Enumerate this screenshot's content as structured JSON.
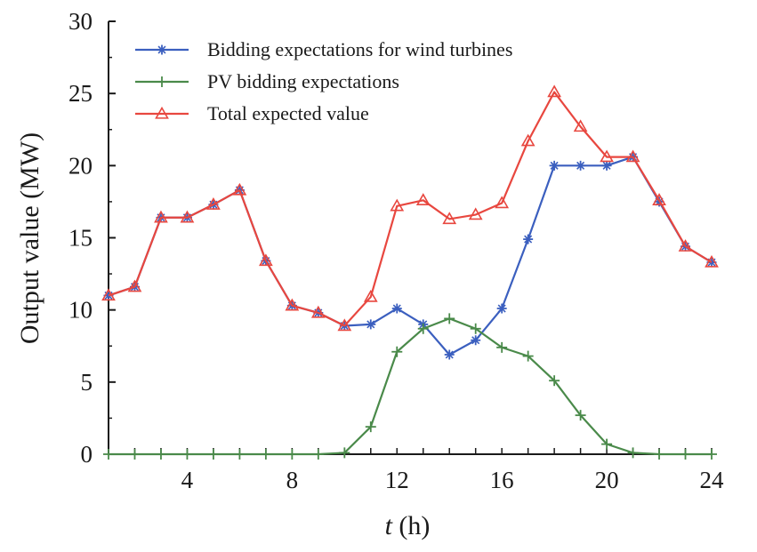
{
  "chart_data": {
    "type": "line",
    "title": "",
    "xlabel_var": "t",
    "xlabel_unit": " (h)",
    "ylabel": "Output value  (MW)",
    "xlim": [
      1,
      24
    ],
    "ylim": [
      0,
      30
    ],
    "x_ticks": [
      4,
      8,
      12,
      16,
      20,
      24
    ],
    "y_ticks": [
      0,
      5,
      10,
      15,
      20,
      25,
      30
    ],
    "x": [
      1,
      2,
      3,
      4,
      5,
      6,
      7,
      8,
      9,
      10,
      11,
      12,
      13,
      14,
      15,
      16,
      17,
      18,
      19,
      20,
      21,
      22,
      23,
      24
    ],
    "legend_position": "top-left",
    "series": [
      {
        "name": "Bidding expectations for wind turbines",
        "color": "#3b5fbf",
        "marker": "star",
        "values": [
          11.0,
          11.6,
          16.4,
          16.4,
          17.3,
          18.3,
          13.4,
          10.3,
          9.8,
          8.9,
          9.0,
          10.1,
          9.0,
          6.9,
          7.9,
          10.1,
          14.9,
          20.0,
          20.0,
          20.0,
          20.6,
          17.5,
          14.4,
          13.3
        ]
      },
      {
        "name": "PV bidding expectations",
        "color": "#4a8a4a",
        "marker": "plus",
        "values": [
          0,
          0,
          0,
          0,
          0,
          0,
          0,
          0,
          0,
          0.1,
          1.9,
          7.1,
          8.7,
          9.4,
          8.7,
          7.4,
          6.8,
          5.1,
          2.7,
          0.7,
          0.1,
          0,
          0,
          0
        ]
      },
      {
        "name": "Total expected value",
        "color": "#e8473f",
        "marker": "triangle",
        "values": [
          11.0,
          11.6,
          16.4,
          16.4,
          17.3,
          18.3,
          13.4,
          10.3,
          9.8,
          8.9,
          10.9,
          17.2,
          17.6,
          16.3,
          16.6,
          17.4,
          21.7,
          25.1,
          22.7,
          20.6,
          20.6,
          17.6,
          14.4,
          13.3
        ]
      }
    ]
  }
}
